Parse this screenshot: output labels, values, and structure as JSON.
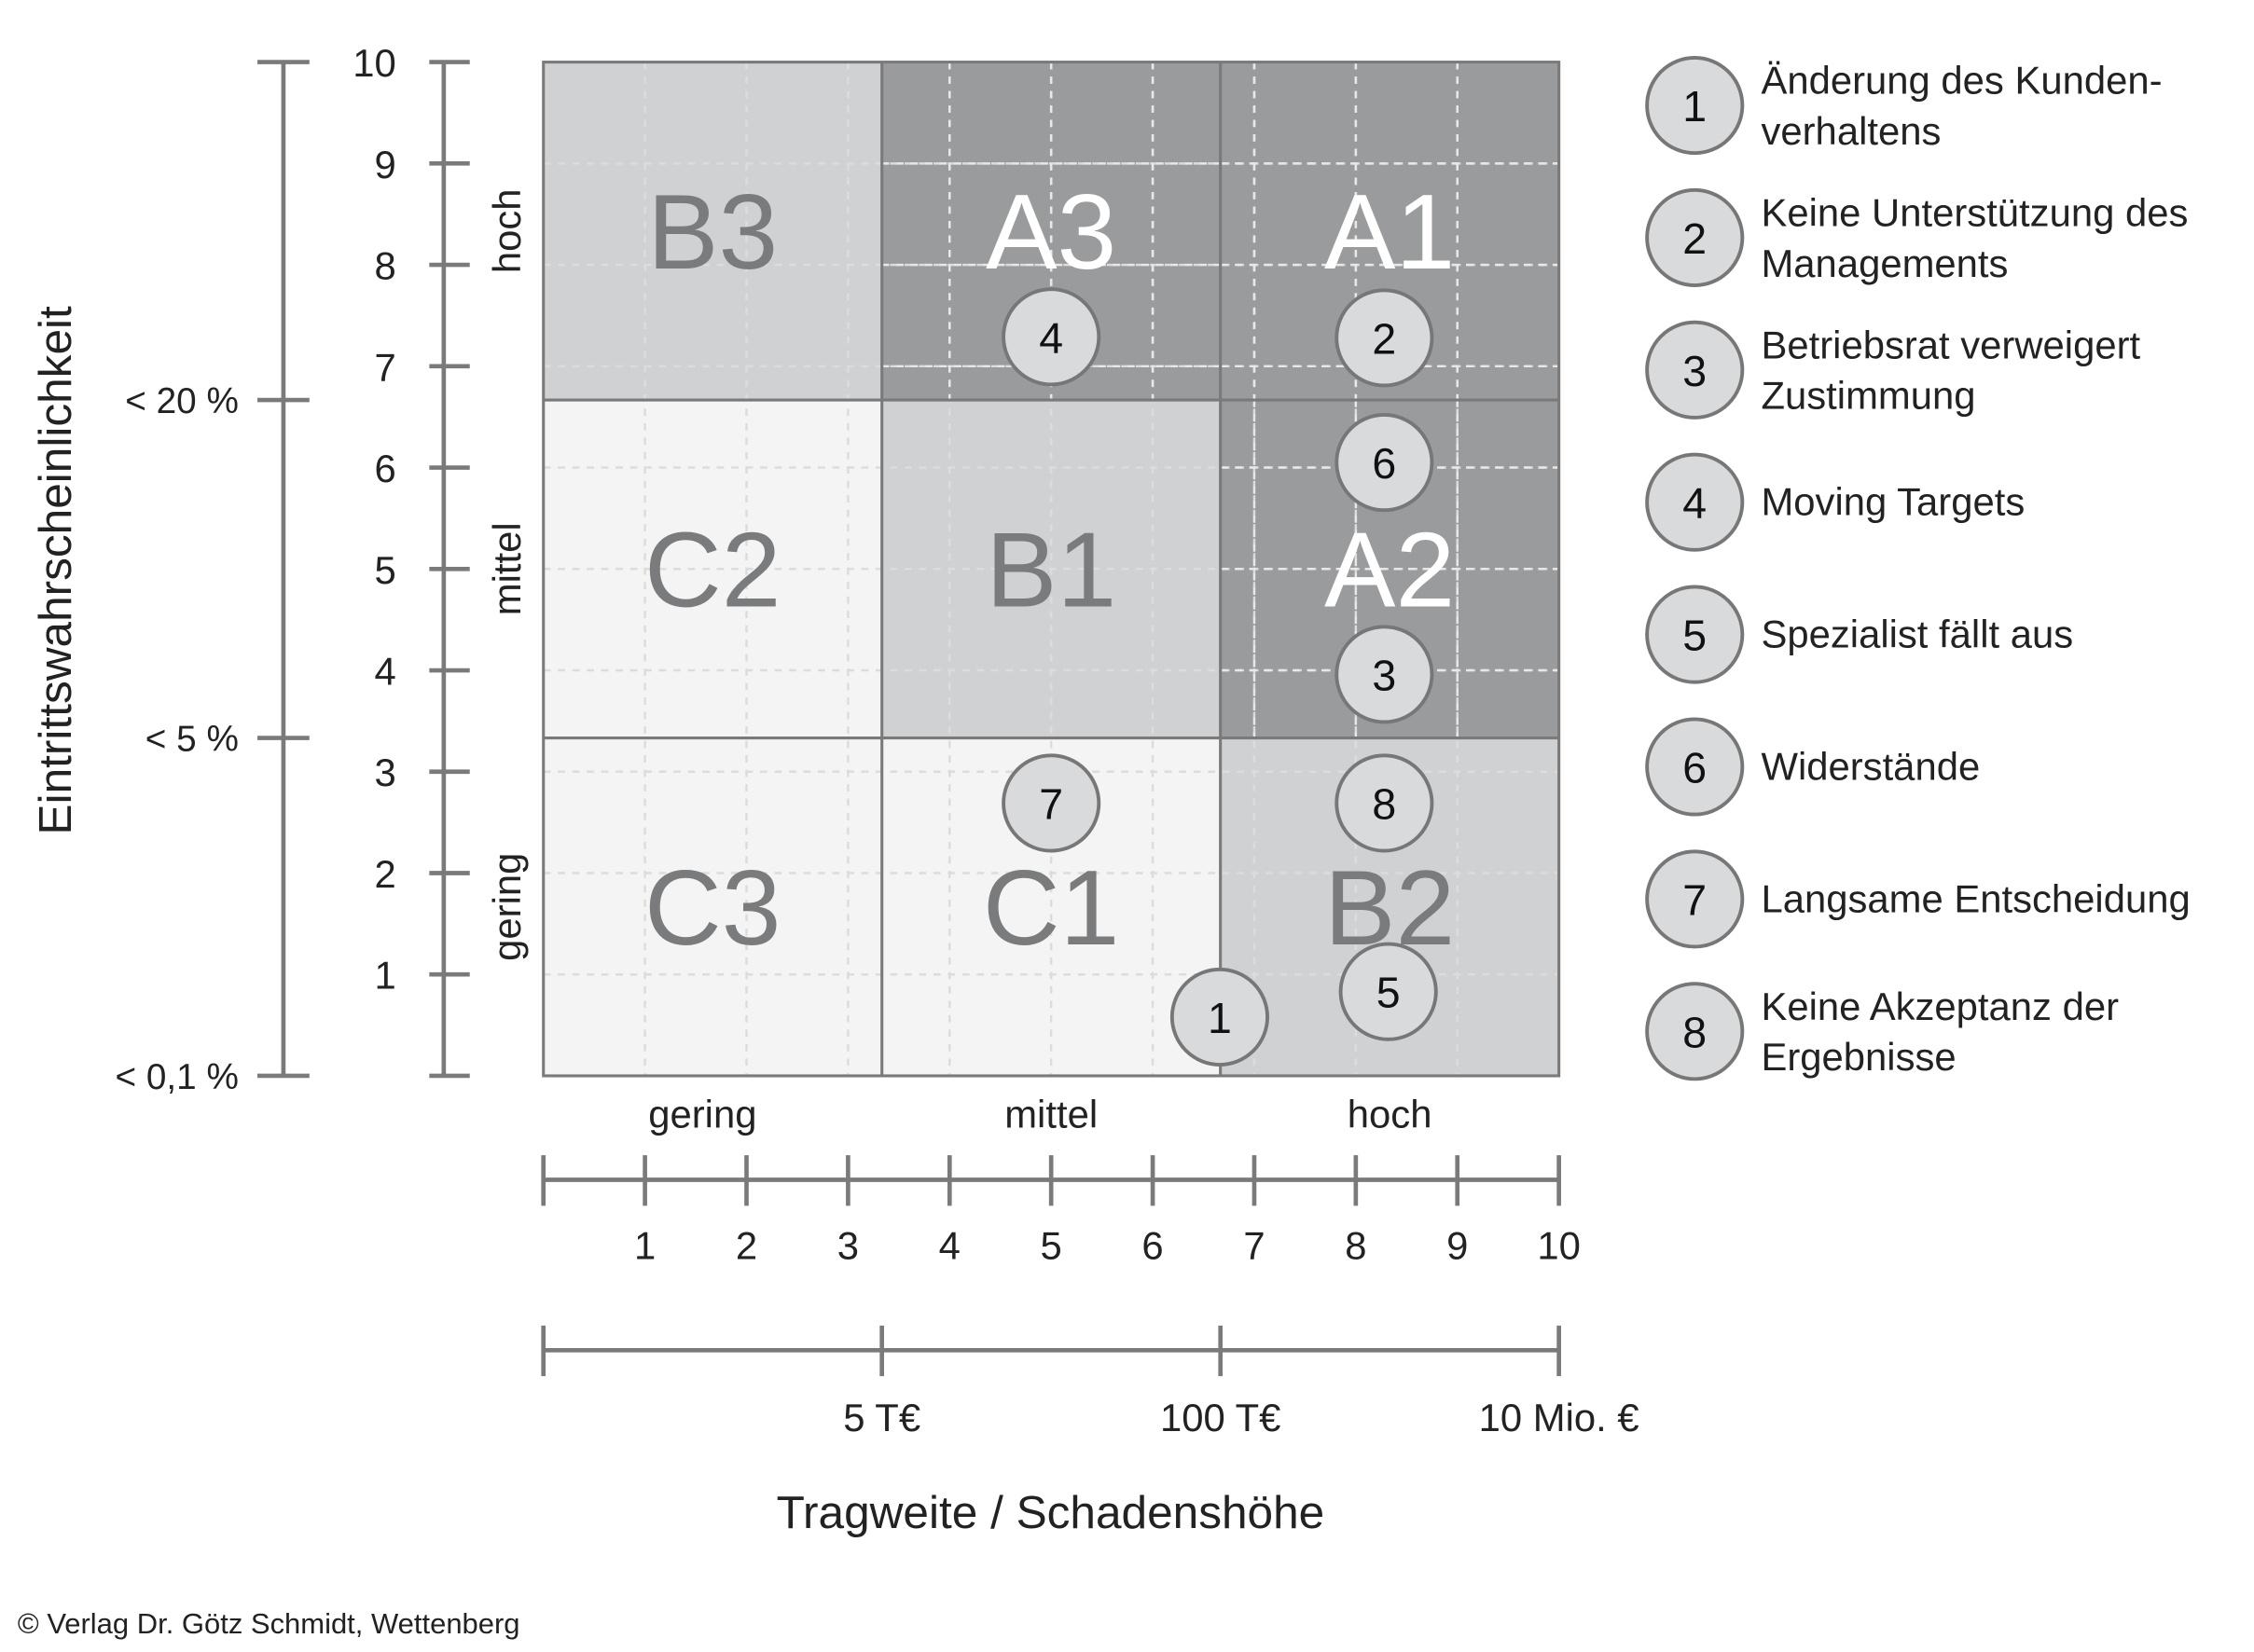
{
  "chart_data": {
    "type": "scatter",
    "xlabel": "Tragweite / Schadenshöhe",
    "ylabel": "Eintrittswahrscheinlichkeit",
    "xlim": [
      0,
      10
    ],
    "ylim": [
      0,
      10
    ],
    "grid": true,
    "x_ticks": [
      "1",
      "2",
      "3",
      "4",
      "5",
      "6",
      "7",
      "8",
      "9",
      "10"
    ],
    "y_ticks": [
      "1",
      "2",
      "3",
      "4",
      "5",
      "6",
      "7",
      "8",
      "9",
      "10"
    ],
    "x_categories": [
      "gering",
      "mittel",
      "hoch"
    ],
    "y_categories": [
      "gering",
      "mittel",
      "hoch"
    ],
    "x_money_scale": [
      {
        "x": 3.333,
        "label": "5 T€"
      },
      {
        "x": 6.667,
        "label": "100 T€"
      },
      {
        "x": 10,
        "label": "10 Mio. €"
      }
    ],
    "y_probability_scale": [
      {
        "y": 10,
        "label": ""
      },
      {
        "y": 6.667,
        "label": "< 20 %"
      },
      {
        "y": 3.333,
        "label": "< 5 %"
      },
      {
        "y": 0,
        "label": "< 0,1 %"
      }
    ],
    "regions": [
      {
        "label": "B3",
        "col": 0,
        "row": 2,
        "shade": "#d0d1d3",
        "text_color": "#7a7b7d"
      },
      {
        "label": "A3",
        "col": 1,
        "row": 2,
        "shade": "#9a9b9d",
        "text_color": "#ffffff"
      },
      {
        "label": "A1",
        "col": 2,
        "row": 2,
        "shade": "#9a9b9d",
        "text_color": "#ffffff"
      },
      {
        "label": "C2",
        "col": 0,
        "row": 1,
        "shade": "#f4f4f4",
        "text_color": "#7a7b7d"
      },
      {
        "label": "B1",
        "col": 1,
        "row": 1,
        "shade": "#d0d1d3",
        "text_color": "#7a7b7d"
      },
      {
        "label": "A2",
        "col": 2,
        "row": 1,
        "shade": "#9a9b9d",
        "text_color": "#ffffff"
      },
      {
        "label": "C3",
        "col": 0,
        "row": 0,
        "shade": "#f4f4f4",
        "text_color": "#7a7b7d"
      },
      {
        "label": "C1",
        "col": 1,
        "row": 0,
        "shade": "#f4f4f4",
        "text_color": "#7a7b7d"
      },
      {
        "label": "B2",
        "col": 2,
        "row": 0,
        "shade": "#d0d1d3",
        "text_color": "#7a7b7d"
      }
    ],
    "points": [
      {
        "id": "1",
        "x": 6.66,
        "y": 0.58,
        "label": "Änderung des Kunden-",
        "label2": "verhaltens"
      },
      {
        "id": "2",
        "x": 8.28,
        "y": 7.28,
        "label": "Keine Unterstützung des",
        "label2": "Managements"
      },
      {
        "id": "3",
        "x": 8.28,
        "y": 3.96,
        "label": "Betriebsrat verweigert",
        "label2": "Zustimmung"
      },
      {
        "id": "4",
        "x": 5.0,
        "y": 7.29,
        "label": "Moving Targets",
        "label2": ""
      },
      {
        "id": "5",
        "x": 8.32,
        "y": 0.83,
        "label": "Spezialist fällt aus",
        "label2": ""
      },
      {
        "id": "6",
        "x": 8.28,
        "y": 6.05,
        "label": "Widerstände",
        "label2": ""
      },
      {
        "id": "7",
        "x": 5.0,
        "y": 2.69,
        "label": "Langsame Entscheidung",
        "label2": ""
      },
      {
        "id": "8",
        "x": 8.28,
        "y": 2.69,
        "label": "Keine Akzeptanz der",
        "label2": "Ergebnisse"
      }
    ],
    "legend_position": "right"
  },
  "copyright": "© Verlag Dr. Götz Schmidt, Wettenberg"
}
